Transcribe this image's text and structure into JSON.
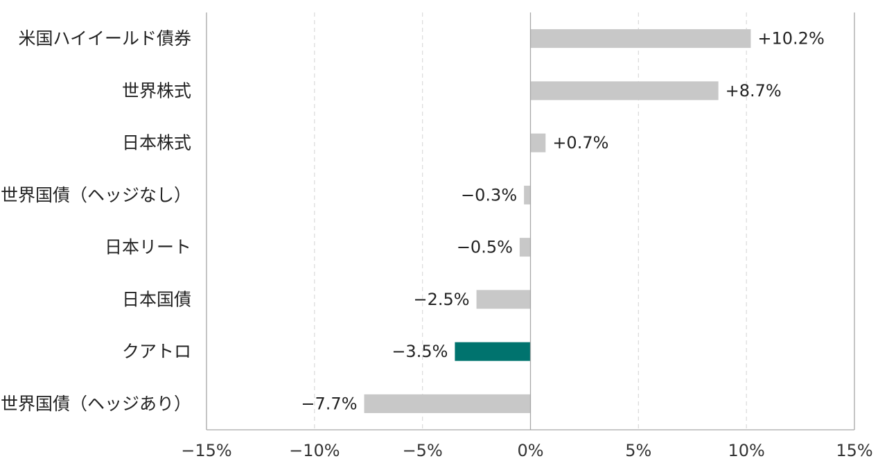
{
  "chart_data": {
    "type": "bar",
    "orientation": "horizontal",
    "title": "",
    "xlabel": "",
    "ylabel": "",
    "xlim": [
      -15,
      15
    ],
    "ticks": [
      -15,
      -10,
      -5,
      0,
      5,
      10,
      15
    ],
    "tick_labels": [
      "−15%",
      "−10%",
      "−5%",
      "0%",
      "5%",
      "10%",
      "15%"
    ],
    "grid": "vertical-dashed",
    "legend": "none",
    "categories": [
      "米国ハイイールド債券",
      "世界株式",
      "日本株式",
      "世界国債（ヘッジなし）",
      "日本リート",
      "日本国債",
      "クアトロ",
      "世界国債（ヘッジあり）"
    ],
    "values": [
      10.2,
      8.7,
      0.7,
      -0.3,
      -0.5,
      -2.5,
      -3.5,
      -7.7
    ],
    "value_labels": [
      "+10.2%",
      "+8.7%",
      "+0.7%",
      "−0.3%",
      "−0.5%",
      "−2.5%",
      "−3.5%",
      "−7.7%"
    ],
    "highlight_category": "クアトロ",
    "colors": {
      "bar": "#c8c8c8",
      "highlight": "#00736e",
      "label": "#222222",
      "highlight_label": "#00736e",
      "grid": "#d9d9d9",
      "axis": "#a6a6a6"
    }
  }
}
